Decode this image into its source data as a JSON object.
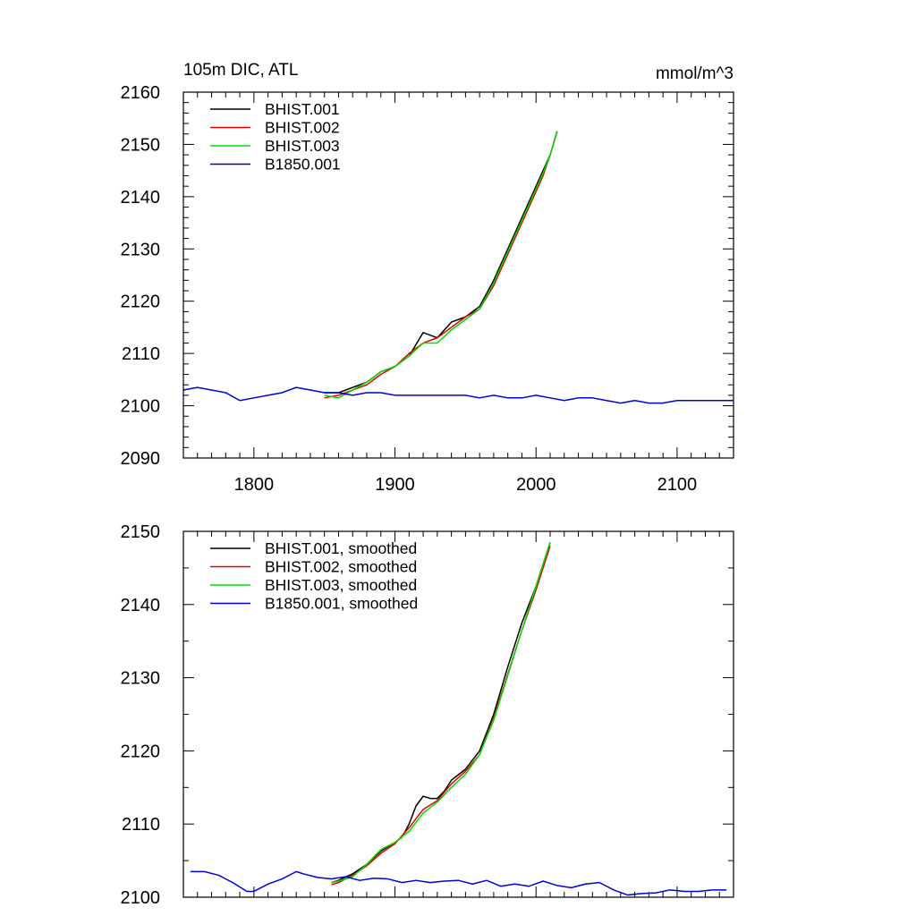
{
  "figure": {
    "title_left": "105m DIC, ATL",
    "title_right": "mmol/m^3"
  },
  "colors": {
    "BHIST.001": "#000000",
    "BHIST.002": "#e60000",
    "BHIST.003": "#00dd00",
    "B1850.001": "#0000dd"
  },
  "chart_data": [
    {
      "type": "line",
      "title": "105m DIC, ATL",
      "units": "mmol/m^3",
      "xlim": [
        1750,
        2140
      ],
      "ylim": [
        2090,
        2160
      ],
      "x_ticks": [
        1800,
        1900,
        2000,
        2100
      ],
      "x_tick_labels": [
        "1800",
        "1900",
        "2000",
        "2100"
      ],
      "y_ticks": [
        2090,
        2100,
        2110,
        2120,
        2130,
        2140,
        2150,
        2160
      ],
      "y_tick_labels": [
        "2090",
        "2100",
        "2110",
        "2120",
        "2130",
        "2140",
        "2150",
        "2160"
      ],
      "grid": false,
      "legend_position": "top-left",
      "series": [
        {
          "name": "BHIST.001",
          "key": "BHIST.001",
          "x": [
            1850,
            1860,
            1870,
            1880,
            1890,
            1900,
            1910,
            1920,
            1925,
            1930,
            1940,
            1950,
            1960,
            1970,
            1980,
            1990,
            2000,
            2005,
            2010,
            2015
          ],
          "y": [
            2102.5,
            2102.5,
            2103.5,
            2104.5,
            2106.5,
            2107.5,
            2109.5,
            2114,
            2113.5,
            2113,
            2116,
            2117,
            2119,
            2124,
            2130,
            2136,
            2142,
            2145,
            2148,
            2152.5
          ]
        },
        {
          "name": "BHIST.002",
          "key": "BHIST.002",
          "x": [
            1850,
            1860,
            1870,
            1880,
            1890,
            1900,
            1910,
            1920,
            1930,
            1940,
            1950,
            1960,
            1970,
            1980,
            1990,
            2000,
            2005,
            2010,
            2015
          ],
          "y": [
            2101.5,
            2102,
            2103,
            2104,
            2106,
            2107.5,
            2110,
            2112,
            2113,
            2115,
            2117,
            2118.5,
            2123,
            2129,
            2135,
            2141,
            2144,
            2148,
            2152.5
          ]
        },
        {
          "name": "BHIST.003",
          "key": "BHIST.003",
          "x": [
            1850,
            1860,
            1870,
            1880,
            1890,
            1900,
            1910,
            1920,
            1930,
            1940,
            1950,
            1960,
            1970,
            1980,
            1990,
            2000,
            2005,
            2010,
            2015
          ],
          "y": [
            2102,
            2101.5,
            2103,
            2104.5,
            2106.5,
            2107.5,
            2109.5,
            2112,
            2112,
            2114.5,
            2116.5,
            2118.5,
            2123.5,
            2129.5,
            2135.5,
            2141.5,
            2144.5,
            2148,
            2152.5
          ]
        },
        {
          "name": "B1850.001",
          "key": "B1850.001",
          "x": [
            1750,
            1760,
            1770,
            1780,
            1790,
            1800,
            1810,
            1820,
            1830,
            1840,
            1850,
            1860,
            1870,
            1880,
            1890,
            1900,
            1910,
            1920,
            1930,
            1940,
            1950,
            1960,
            1970,
            1980,
            1990,
            2000,
            2010,
            2020,
            2030,
            2040,
            2050,
            2060,
            2070,
            2080,
            2090,
            2100,
            2110,
            2120,
            2130,
            2140
          ],
          "y": [
            2103,
            2103.5,
            2103,
            2102.5,
            2101,
            2101.5,
            2102,
            2102.5,
            2103.5,
            2103,
            2102.5,
            2102.5,
            2102,
            2102.5,
            2102.5,
            2102,
            2102,
            2102,
            2102,
            2102,
            2102,
            2101.5,
            2102,
            2101.5,
            2101.5,
            2102,
            2101.5,
            2101,
            2101.5,
            2101.5,
            2101,
            2100.5,
            2101,
            2100.5,
            2100.5,
            2101,
            2101,
            2101,
            2101,
            2101
          ]
        }
      ]
    },
    {
      "type": "line",
      "xlim": [
        1750,
        2140
      ],
      "ylim": [
        2100,
        2150
      ],
      "x_ticks": [
        1800,
        1900,
        2000,
        2100
      ],
      "y_ticks": [
        2100,
        2110,
        2120,
        2130,
        2140,
        2150
      ],
      "y_tick_labels": [
        "2100",
        "2110",
        "2120",
        "2130",
        "2140",
        "2150"
      ],
      "grid": false,
      "legend_position": "top-left",
      "series": [
        {
          "name": "BHIST.001, smoothed",
          "key": "BHIST.001",
          "x": [
            1855,
            1860,
            1870,
            1880,
            1890,
            1900,
            1905,
            1910,
            1915,
            1920,
            1925,
            1930,
            1935,
            1940,
            1950,
            1960,
            1970,
            1980,
            1990,
            2000,
            2010
          ],
          "y": [
            2102,
            2102.3,
            2103.2,
            2104.5,
            2106.3,
            2107.5,
            2108.2,
            2110,
            2112.5,
            2113.8,
            2113.5,
            2113.5,
            2114.5,
            2116,
            2117.5,
            2120,
            2125,
            2131.5,
            2137.5,
            2142.5,
            2148.5
          ]
        },
        {
          "name": "BHIST.002, smoothed",
          "key": "BHIST.002",
          "x": [
            1855,
            1860,
            1870,
            1880,
            1890,
            1900,
            1910,
            1920,
            1930,
            1940,
            1950,
            1960,
            1970,
            1980,
            1990,
            2000,
            2010
          ],
          "y": [
            2101.7,
            2102,
            2103,
            2104.3,
            2106,
            2107.3,
            2109.5,
            2112,
            2113.2,
            2115.5,
            2117.2,
            2119.5,
            2124.5,
            2130.5,
            2136.5,
            2142,
            2148
          ]
        },
        {
          "name": "BHIST.003, smoothed",
          "key": "BHIST.003",
          "x": [
            1855,
            1860,
            1870,
            1880,
            1890,
            1900,
            1910,
            1920,
            1930,
            1940,
            1950,
            1960,
            1970,
            1980,
            1990,
            2000,
            2010
          ],
          "y": [
            2102,
            2102.2,
            2102.8,
            2104.5,
            2106.5,
            2107.5,
            2109,
            2111.5,
            2113,
            2115,
            2116.8,
            2119.5,
            2124.2,
            2130.3,
            2136.5,
            2142.5,
            2148.5
          ]
        },
        {
          "name": "B1850.001, smoothed",
          "key": "B1850.001",
          "x": [
            1755,
            1765,
            1775,
            1785,
            1795,
            1800,
            1810,
            1820,
            1830,
            1835,
            1845,
            1855,
            1865,
            1875,
            1885,
            1895,
            1905,
            1915,
            1925,
            1935,
            1945,
            1955,
            1965,
            1975,
            1985,
            1995,
            2005,
            2015,
            2025,
            2035,
            2045,
            2055,
            2065,
            2075,
            2085,
            2095,
            2105,
            2115,
            2125,
            2135
          ],
          "y": [
            2103.5,
            2103.5,
            2103,
            2102,
            2100.8,
            2100.8,
            2101.8,
            2102.5,
            2103.5,
            2103.2,
            2102.7,
            2102.5,
            2102.8,
            2102.3,
            2102.6,
            2102.5,
            2102,
            2102.3,
            2102,
            2102.2,
            2102.3,
            2101.8,
            2102.3,
            2101.5,
            2101.8,
            2101.5,
            2102.2,
            2101.6,
            2101.3,
            2101.8,
            2102,
            2101,
            2100.3,
            2100.5,
            2100.6,
            2101,
            2100.8,
            2100.8,
            2101,
            2101
          ]
        }
      ]
    }
  ]
}
